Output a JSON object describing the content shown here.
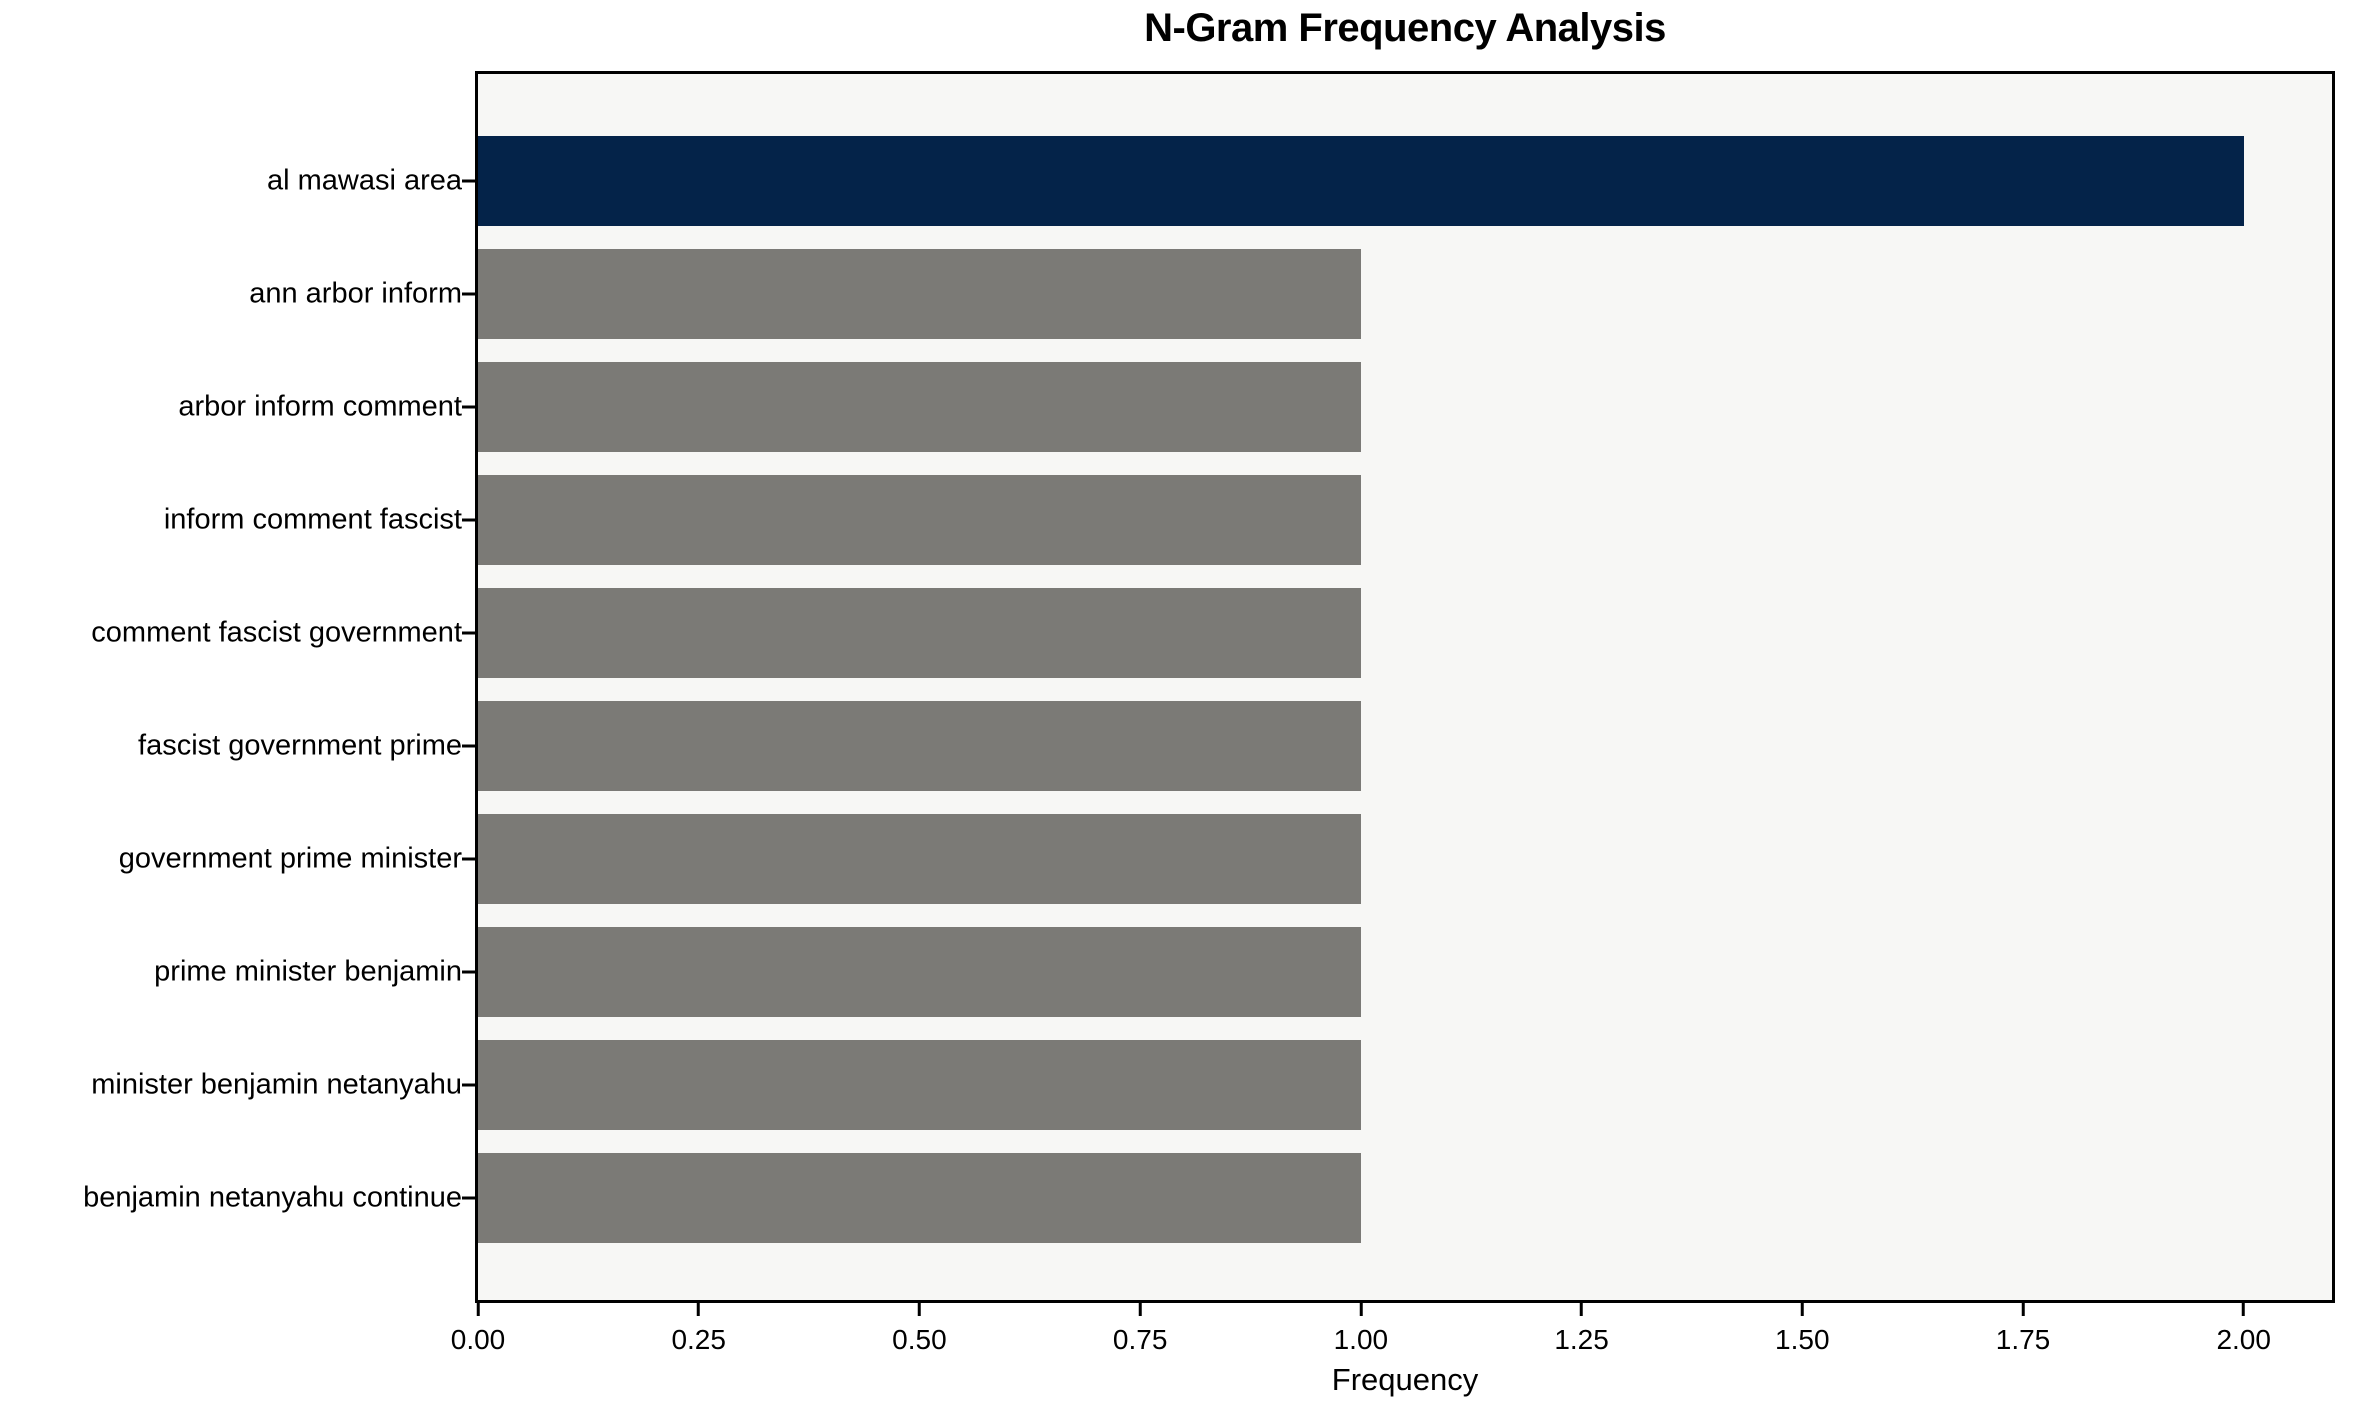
{
  "title": "N-Gram Frequency Analysis",
  "chart_data": {
    "type": "bar",
    "orientation": "horizontal",
    "title": "N-Gram Frequency Analysis",
    "xlabel": "Frequency",
    "ylabel": "",
    "categories": [
      "al mawasi area",
      "ann arbor inform",
      "arbor inform comment",
      "inform comment fascist",
      "comment fascist government",
      "fascist government prime",
      "government prime minister",
      "prime minister benjamin",
      "minister benjamin netanyahu",
      "benjamin netanyahu continue"
    ],
    "values": [
      2,
      1,
      1,
      1,
      1,
      1,
      1,
      1,
      1,
      1
    ],
    "bar_colors": [
      "#042349",
      "#7b7a76",
      "#7b7a76",
      "#7b7a76",
      "#7b7a76",
      "#7b7a76",
      "#7b7a76",
      "#7b7a76",
      "#7b7a76",
      "#7b7a76"
    ],
    "highlight_color": "#042349",
    "default_color": "#7b7a76",
    "xlim": [
      0,
      2.1
    ],
    "xticks": [
      0,
      0.25,
      0.5,
      0.75,
      1.0,
      1.25,
      1.5,
      1.75,
      2.0
    ],
    "xtick_labels": [
      "0.00",
      "0.25",
      "0.50",
      "0.75",
      "1.00",
      "1.25",
      "1.50",
      "1.75",
      "2.00"
    ],
    "grid": false,
    "legend": null,
    "plot_background": "#f7f7f5",
    "figure_background": "#ffffff",
    "spine_color": "#000000"
  }
}
